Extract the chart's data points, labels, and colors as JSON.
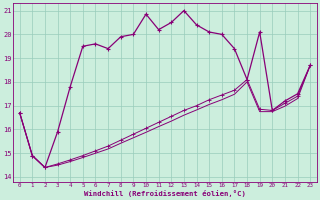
{
  "xlabel": "Windchill (Refroidissement éolien,°C)",
  "bg_color": "#cceedd",
  "grid_color": "#99ccbb",
  "line_color": "#880077",
  "xlim": [
    -0.5,
    23.5
  ],
  "ylim": [
    13.8,
    21.3
  ],
  "yticks": [
    14,
    15,
    16,
    17,
    18,
    19,
    20,
    21
  ],
  "xticks": [
    0,
    1,
    2,
    3,
    4,
    5,
    6,
    7,
    8,
    9,
    10,
    11,
    12,
    13,
    14,
    15,
    16,
    17,
    18,
    19,
    20,
    21,
    22,
    23
  ],
  "series1_x": [
    0,
    1,
    2,
    3,
    4,
    5,
    6,
    7,
    8,
    9,
    10,
    11,
    12,
    13,
    14,
    15,
    16,
    17,
    18,
    19,
    20,
    21,
    22,
    23
  ],
  "series1_y": [
    16.7,
    14.9,
    14.4,
    15.9,
    17.8,
    19.5,
    19.6,
    19.4,
    19.9,
    20.0,
    20.85,
    20.2,
    20.5,
    21.0,
    20.4,
    20.1,
    20.0,
    19.4,
    18.1,
    20.1,
    16.8,
    17.2,
    17.5,
    18.7
  ],
  "series2_x": [
    0,
    1,
    2,
    3,
    4,
    5,
    6,
    7,
    8,
    9,
    10,
    11,
    12,
    13,
    14,
    15,
    16,
    17,
    18,
    19,
    20,
    21,
    22,
    23
  ],
  "series2_y": [
    16.7,
    14.9,
    14.4,
    14.55,
    14.72,
    14.9,
    15.1,
    15.3,
    15.55,
    15.8,
    16.05,
    16.3,
    16.55,
    16.8,
    17.0,
    17.25,
    17.45,
    17.65,
    18.1,
    16.85,
    16.8,
    17.1,
    17.4,
    18.7
  ],
  "series3_x": [
    0,
    1,
    2,
    3,
    4,
    5,
    6,
    7,
    8,
    9,
    10,
    11,
    12,
    13,
    14,
    15,
    16,
    17,
    18,
    19,
    20,
    21,
    22,
    23
  ],
  "series3_y": [
    16.7,
    14.9,
    14.4,
    14.5,
    14.65,
    14.82,
    15.0,
    15.18,
    15.42,
    15.65,
    15.88,
    16.12,
    16.35,
    16.6,
    16.82,
    17.05,
    17.25,
    17.48,
    18.0,
    16.75,
    16.75,
    16.98,
    17.3,
    18.7
  ]
}
